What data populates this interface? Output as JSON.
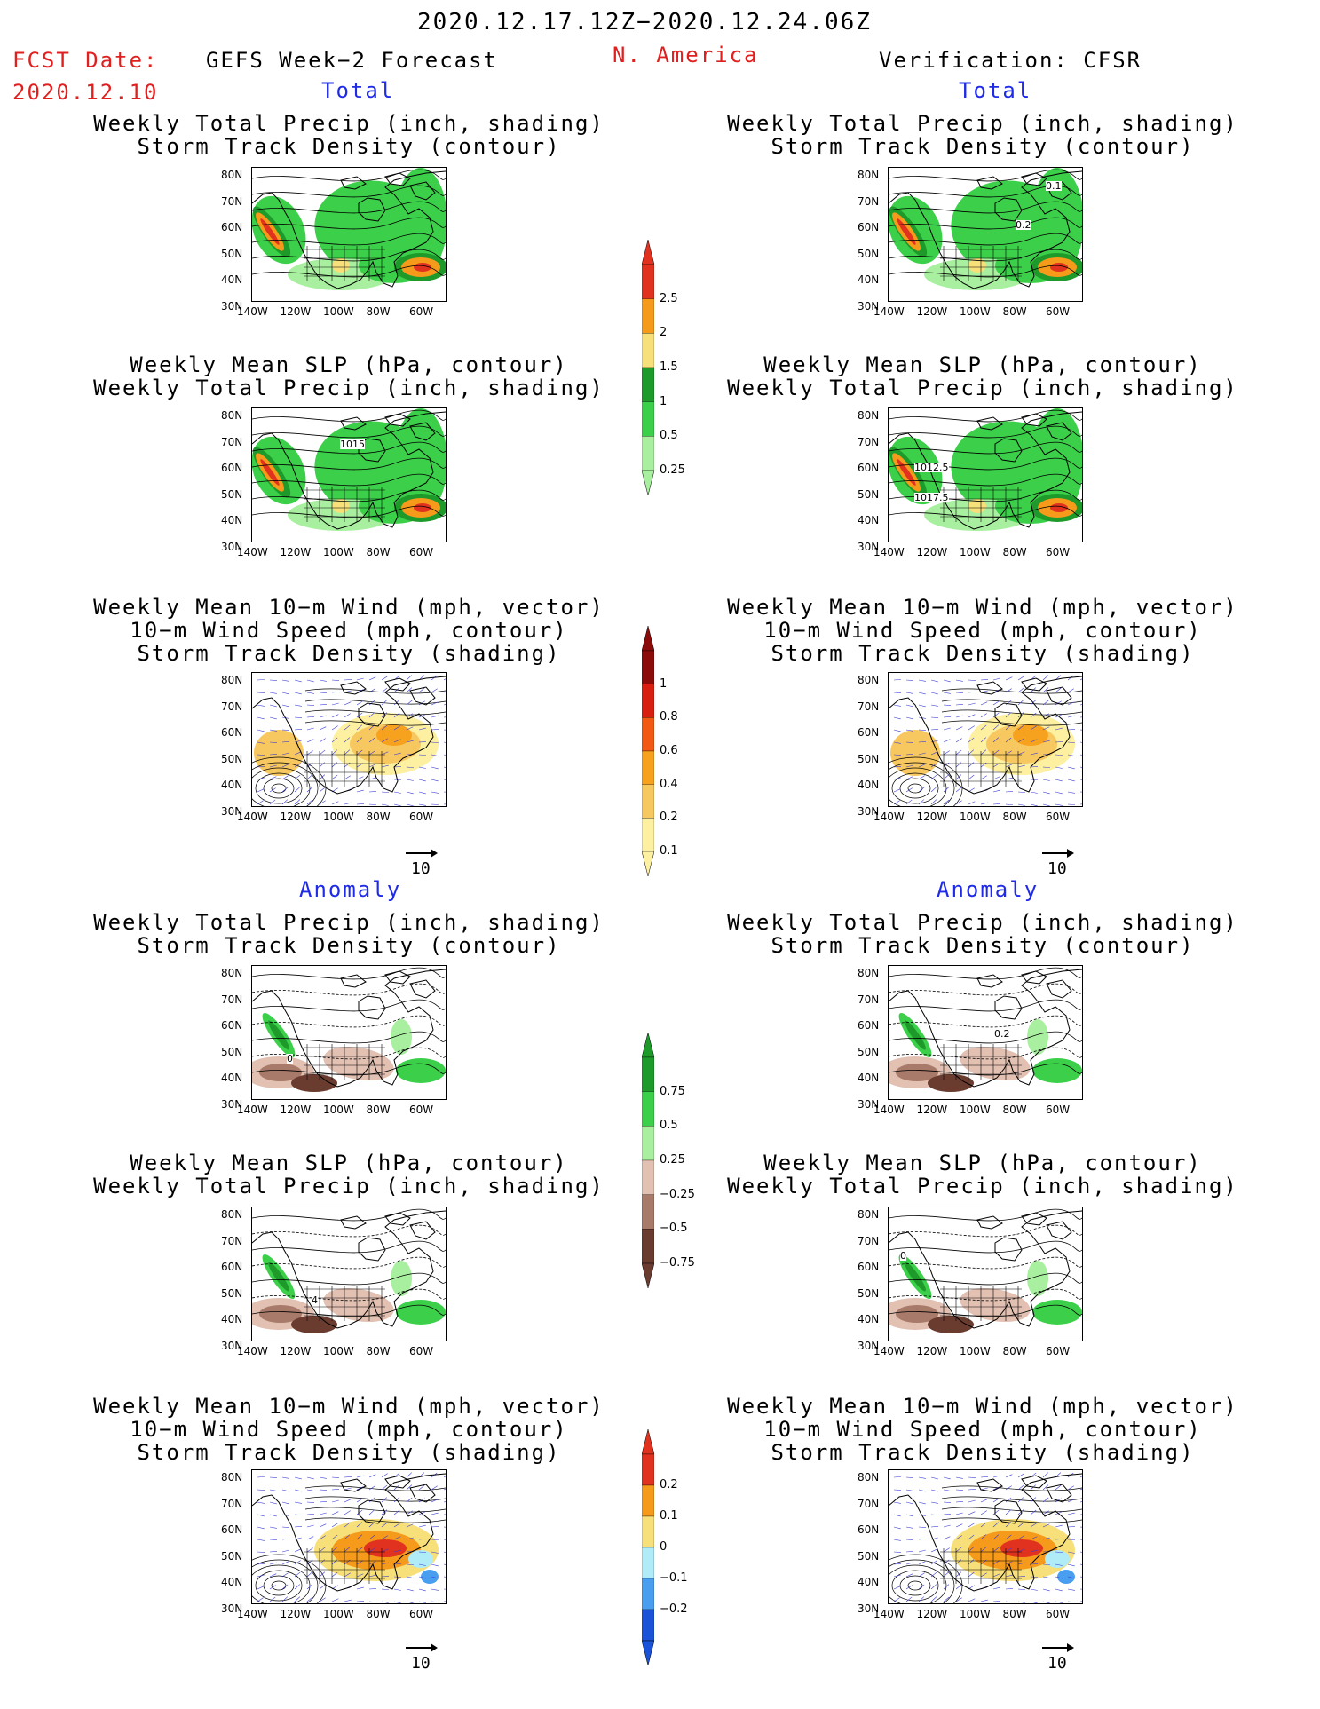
{
  "header": {
    "title": "2020.12.17.12Z−2020.12.24.06Z",
    "fcst_date_label": "FCST Date:",
    "fcst_date_value": "2020.12.10",
    "model_label": "GEFS Week−2 Forecast",
    "region": "N. America",
    "verification_label": "Verification: CFSR"
  },
  "sections": {
    "total_left": "Total",
    "total_right": "Total",
    "anomaly_left": "Anomaly",
    "anomaly_right": "Anomaly"
  },
  "panel_titles": {
    "precip_track": [
      "Weekly Total Precip (inch, shading)",
      "Storm Track Density (contour)"
    ],
    "slp_precip": [
      "Weekly Mean SLP (hPa, contour)",
      "Weekly Total Precip (inch, shading)"
    ],
    "wind_track": [
      "Weekly Mean 10−m Wind (mph, vector)",
      "10−m Wind Speed (mph, contour)",
      "Storm Track Density (shading)"
    ]
  },
  "axes": {
    "lat_labels": [
      "80N",
      "70N",
      "60N",
      "50N",
      "40N",
      "30N"
    ],
    "lon_labels": [
      "140W",
      "120W",
      "100W",
      "80W",
      "60W"
    ]
  },
  "vector_scale": "10",
  "contour_labels": {
    "r1_right_a": "0.1",
    "r1_right_b": "0.2",
    "r2_left": "1015",
    "r2_right_a": "1012.5",
    "r2_right_b": "1017.5",
    "a1_left": "0",
    "a1_right": "0.2",
    "a2_left": "4",
    "a2_right": "0"
  },
  "colorbars": {
    "precip_total": {
      "labels": [
        "2.5",
        "2",
        "1.5",
        "1",
        "0.5",
        "0.25"
      ],
      "colors": [
        "#e0321e",
        "#f59a1a",
        "#f7e07a",
        "#1e9a2a",
        "#3ccf4a",
        "#a8f0a0"
      ]
    },
    "track_total": {
      "labels": [
        "1",
        "0.8",
        "0.6",
        "0.4",
        "0.2",
        "0.1"
      ],
      "colors": [
        "#8b0a0a",
        "#d81e10",
        "#f25a14",
        "#f7a21e",
        "#f8c860",
        "#fdf0a0"
      ]
    },
    "precip_anom": {
      "labels": [
        "0.75",
        "0.5",
        "0.25",
        "−0.25",
        "−0.5",
        "−0.75"
      ],
      "colors": [
        "#1e9a2a",
        "#3ccf4a",
        "#a8f0a0",
        "#e2c0b2",
        "#a87a6a",
        "#6a3c30"
      ]
    },
    "track_anom": {
      "labels": [
        "0.2",
        "0.1",
        "0",
        "−0.1",
        "−0.2"
      ],
      "colors": [
        "#e0321e",
        "#f59a1a",
        "#f7e07a",
        "#b0ecf8",
        "#4a9ef0",
        "#1a52d8"
      ]
    }
  }
}
